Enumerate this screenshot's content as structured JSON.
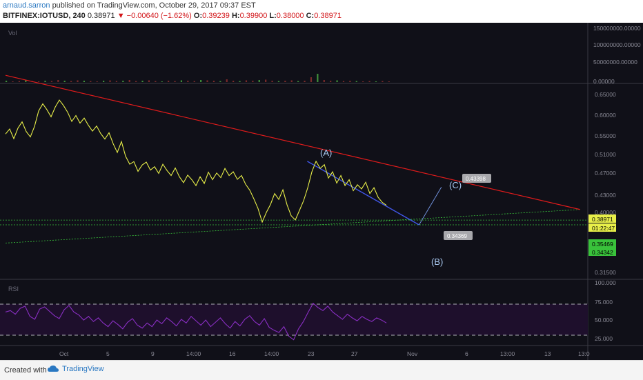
{
  "header": {
    "username": "arnaud.sarron",
    "published": "published on TradingView.com, October 29, 2017 09:37 EST",
    "symbol": "BITFINEX:IOTUSD, 240",
    "last": "0.38971",
    "arrow": "▼",
    "change": "−0.00640 (−1.62%)",
    "o_label": "O:",
    "o_value": "0.39239",
    "h_label": "H:",
    "h_value": "0.39900",
    "l_label": "L:",
    "l_value": "0.38000",
    "c_label": "C:",
    "c_value": "0.38971"
  },
  "footer": {
    "created": "Created with",
    "brand": "TradingView"
  },
  "colors": {
    "background": "#101018",
    "price": "#e8ef49",
    "trend": "#e01b1b",
    "wave": "#4056e8",
    "support": "#39c23b",
    "rsi": "#8a2fc4",
    "rsi_band": "#1e0f2c"
  },
  "chart_data": {
    "type": "line",
    "panes": {
      "volume": {
        "label": "Vol",
        "ticks": [
          "150000000.00000",
          "100000000.00000",
          "50000000.00000",
          "0.00000"
        ],
        "ylim": [
          0,
          160000000
        ]
      },
      "price": {
        "ticks": [
          "0.65000",
          "0.60000",
          "0.55000",
          "0.51000",
          "0.47000",
          "0.43000",
          "0.40000",
          "0.31500"
        ],
        "price_labels": [
          {
            "text": "0.38971",
            "kind": "last",
            "color": "#e8ef49"
          },
          {
            "text": "01:22:47",
            "kind": "timer",
            "color": "#e8ef49"
          },
          {
            "text": "0.35469",
            "kind": "support",
            "color": "#39c23b"
          },
          {
            "text": "0.34342",
            "kind": "support",
            "color": "#39c23b"
          }
        ],
        "annotations": [
          {
            "text": "(A)",
            "x": "Oct 24",
            "y": 0.495
          },
          {
            "text": "(B)",
            "x": "Nov 3",
            "y": 0.3434
          },
          {
            "text": "(C)",
            "x": "Nov 5",
            "y": 0.4334
          }
        ],
        "callouts": [
          "0.34369",
          "0.43398"
        ]
      },
      "rsi": {
        "label": "RSI",
        "ticks": [
          "100.000",
          "75.000",
          "50.000",
          "25.000"
        ],
        "ylim": [
          15,
          100
        ],
        "bands": [
          70,
          30
        ]
      }
    },
    "x_ticks": [
      "Oct",
      "5",
      "9",
      "14:00",
      "16",
      "14:00",
      "23",
      "27",
      "Nov",
      "6",
      "13:00",
      "13",
      "13:0"
    ],
    "series": [
      {
        "role": "price",
        "values": [
          0.56,
          0.572,
          0.549,
          0.574,
          0.589,
          0.566,
          0.553,
          0.578,
          0.615,
          0.632,
          0.618,
          0.601,
          0.624,
          0.641,
          0.628,
          0.612,
          0.59,
          0.604,
          0.586,
          0.598,
          0.581,
          0.567,
          0.579,
          0.561,
          0.548,
          0.563,
          0.537,
          0.516,
          0.542,
          0.507,
          0.488,
          0.494,
          0.471,
          0.486,
          0.493,
          0.474,
          0.482,
          0.466,
          0.488,
          0.473,
          0.461,
          0.479,
          0.458,
          0.444,
          0.462,
          0.451,
          0.437,
          0.458,
          0.442,
          0.469,
          0.451,
          0.467,
          0.456,
          0.478,
          0.461,
          0.47,
          0.452,
          0.461,
          0.44,
          0.426,
          0.405,
          0.382,
          0.35,
          0.373,
          0.392,
          0.418,
          0.404,
          0.427,
          0.391,
          0.365,
          0.355,
          0.378,
          0.401,
          0.432,
          0.47,
          0.495,
          0.478,
          0.487,
          0.455,
          0.47,
          0.443,
          0.461,
          0.437,
          0.451,
          0.425,
          0.439,
          0.429,
          0.445,
          0.418,
          0.432,
          0.409,
          0.397,
          0.39
        ],
        "x_range": [
          "Sep 27",
          "Oct 29"
        ]
      },
      {
        "role": "volume",
        "values": [
          4,
          2,
          3,
          5,
          3,
          2,
          4,
          3,
          6,
          4,
          3,
          5,
          4,
          3,
          2,
          4,
          5,
          3,
          4,
          6,
          3,
          4,
          5,
          3,
          2,
          4,
          3,
          5,
          4,
          3,
          6,
          5,
          4,
          3,
          8,
          4,
          3,
          5,
          4,
          6,
          7,
          4,
          3,
          4,
          5,
          3,
          4,
          14,
          24,
          6,
          4,
          5,
          3,
          4,
          3,
          2,
          3,
          2,
          3,
          2
        ],
        "unit": "millions"
      },
      {
        "role": "rsi",
        "values": [
          58,
          60,
          55,
          63,
          66,
          52,
          48,
          62,
          65,
          59,
          53,
          49,
          61,
          67,
          58,
          54,
          47,
          52,
          45,
          50,
          43,
          38,
          46,
          41,
          35,
          44,
          49,
          40,
          36,
          43,
          38,
          47,
          42,
          50,
          45,
          39,
          48,
          43,
          52,
          46,
          40,
          47,
          38,
          44,
          50,
          42,
          36,
          45,
          39,
          48,
          53,
          45,
          40,
          49,
          37,
          33,
          30,
          38,
          25,
          20,
          35,
          45,
          58,
          70,
          64,
          60,
          66,
          58,
          53,
          48,
          55,
          50,
          46,
          52,
          48,
          45,
          50,
          47,
          43
        ],
        "x_range": [
          "Sep 27",
          "Oct 29"
        ]
      }
    ],
    "drawings": {
      "trendline": {
        "from": {
          "x": "Sep 27",
          "y": 0.7
        },
        "to": {
          "x": "Nov 17",
          "y": 0.38
        }
      },
      "support_diag": {
        "from": {
          "x": "Sep 27",
          "y": 0.3
        },
        "to": {
          "x": "Nov 17",
          "y": 0.38
        }
      },
      "wave_A_to_B": {
        "from": {
          "x": "Oct 24",
          "y": 0.495
        },
        "to": {
          "x": "Nov 3",
          "y": 0.3434
        }
      },
      "wave_B_to_C": {
        "from": {
          "x": "Nov 3",
          "y": 0.3434
        },
        "to": {
          "x": "Nov 5",
          "y": 0.4334
        }
      },
      "hlines": [
        0.35469,
        0.34342
      ]
    }
  }
}
